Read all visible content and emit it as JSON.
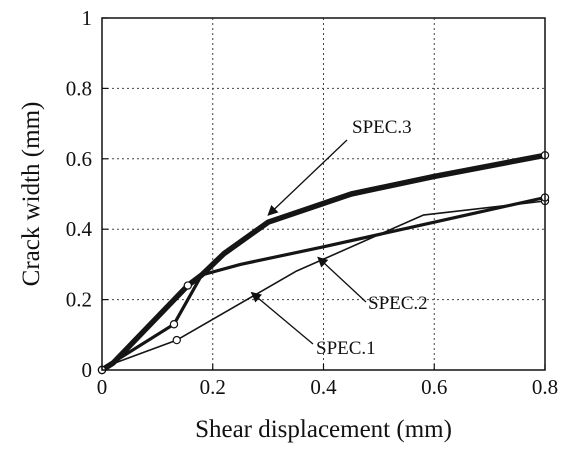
{
  "chart_data": {
    "type": "line",
    "title": "",
    "xlabel": "Shear displacement (mm)",
    "ylabel": "Crack width (mm)",
    "xlim": [
      0,
      0.8
    ],
    "ylim": [
      0,
      1
    ],
    "x_ticks": [
      "0",
      "0.2",
      "0.4",
      "0.6",
      "0.8"
    ],
    "y_ticks": [
      "0",
      "0.2",
      "0.4",
      "0.6",
      "0.8",
      "1"
    ],
    "grid": true,
    "grid_style": "dotted",
    "legend": "none",
    "series": [
      {
        "name": "SPEC.1",
        "points": [
          [
            0,
            0
          ],
          [
            0.015,
            0.015
          ],
          [
            0.135,
            0.085
          ],
          [
            0.35,
            0.28
          ],
          [
            0.58,
            0.44
          ],
          [
            0.8,
            0.48
          ]
        ],
        "markers": [
          [
            0,
            0
          ],
          [
            0.135,
            0.085
          ],
          [
            0.8,
            0.48
          ]
        ],
        "line_weight": "thin"
      },
      {
        "name": "SPEC.2",
        "points": [
          [
            0,
            0
          ],
          [
            0.018,
            0.02
          ],
          [
            0.13,
            0.13
          ],
          [
            0.18,
            0.27
          ],
          [
            0.25,
            0.3
          ],
          [
            0.4,
            0.35
          ],
          [
            0.6,
            0.42
          ],
          [
            0.8,
            0.49
          ]
        ],
        "markers": [
          [
            0,
            0
          ],
          [
            0.13,
            0.13
          ],
          [
            0.8,
            0.49
          ]
        ],
        "line_weight": "medium"
      },
      {
        "name": "SPEC.3",
        "points": [
          [
            0,
            0
          ],
          [
            0.02,
            0.02
          ],
          [
            0.155,
            0.24
          ],
          [
            0.18,
            0.27
          ],
          [
            0.22,
            0.33
          ],
          [
            0.3,
            0.42
          ],
          [
            0.45,
            0.5
          ],
          [
            0.6,
            0.55
          ],
          [
            0.8,
            0.61
          ]
        ],
        "markers": [
          [
            0,
            0
          ],
          [
            0.155,
            0.24
          ],
          [
            0.8,
            0.61
          ]
        ],
        "line_weight": "thick"
      }
    ],
    "annotations": [
      {
        "text": "SPEC.3",
        "series": "SPEC.3",
        "arrow_to": [
          0.3,
          0.44
        ]
      },
      {
        "text": "SPEC.2",
        "series": "SPEC.2",
        "arrow_to": [
          0.39,
          0.32
        ]
      },
      {
        "text": "SPEC.1",
        "series": "SPEC.1",
        "arrow_to": [
          0.27,
          0.22
        ]
      }
    ]
  }
}
